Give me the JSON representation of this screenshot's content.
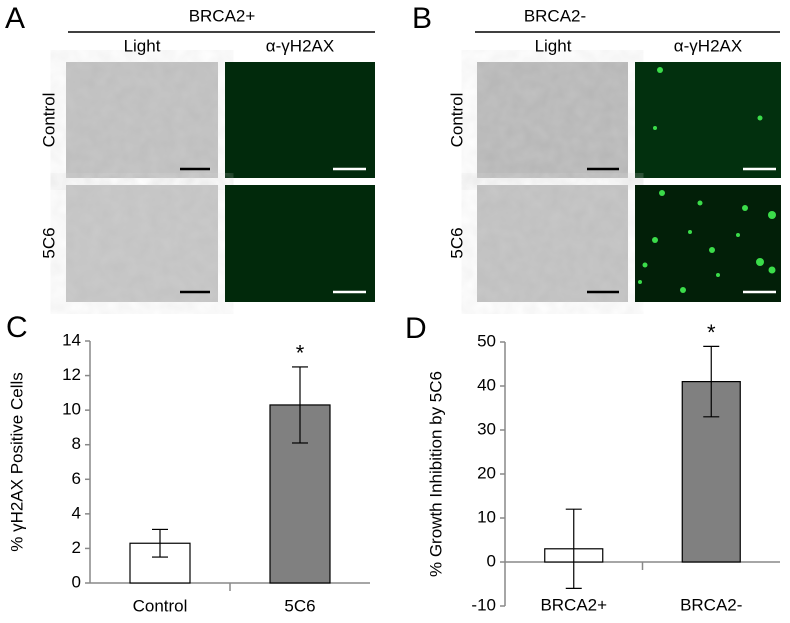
{
  "panels": [
    {
      "label": "A",
      "title": "BRCA2+",
      "columns": [
        "Light",
        "α-γH2AX"
      ],
      "rows": [
        "Control",
        "5C6"
      ]
    },
    {
      "label": "B",
      "title": "BRCA2-",
      "columns": [
        "Light",
        "α-γH2AX"
      ],
      "rows": [
        "Control",
        "5C6"
      ]
    }
  ],
  "chart_data": [
    {
      "type": "bar",
      "panel_label": "C",
      "y_label": "% γH2AX Positive Cells",
      "categories": [
        "Control",
        "5C6"
      ],
      "values": [
        2.3,
        10.3
      ],
      "errors": [
        0.8,
        2.2
      ],
      "colors": [
        "#ffffff",
        "#808080"
      ],
      "annotation_labels": [
        null,
        "*"
      ],
      "ylim": [
        0,
        14
      ],
      "yticks": [
        0,
        2,
        4,
        6,
        8,
        10,
        12,
        14
      ]
    },
    {
      "type": "bar",
      "panel_label": "D",
      "y_label": "% Growth Inhibition by 5C6",
      "categories": [
        "BRCA2+",
        "BRCA2-"
      ],
      "values": [
        3,
        41
      ],
      "errors": [
        9,
        8
      ],
      "colors": [
        "#ffffff",
        "#808080"
      ],
      "annotation_labels": [
        null,
        "*"
      ],
      "ylim": [
        -10,
        50
      ],
      "yticks": [
        -10,
        0,
        10,
        20,
        30,
        40,
        50
      ]
    }
  ]
}
